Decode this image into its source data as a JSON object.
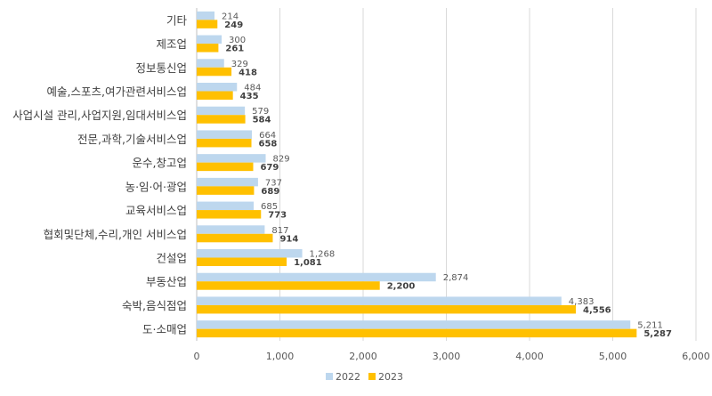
{
  "chart_data": {
    "type": "bar",
    "orientation": "horizontal",
    "categories": [
      "기타",
      "제조업",
      "정보통신업",
      "예술,스포츠,여가관련서비스업",
      "사업시설 관리,사업지원,임대서비스업",
      "전문,과학,기술서비스업",
      "운수,창고업",
      "농·임·어·광업",
      "교육서비스업",
      "협회및단체,수리,개인 서비스업",
      "건설업",
      "부동산업",
      "숙박,음식점업",
      "도·소매업"
    ],
    "series": [
      {
        "name": "2022",
        "color": "#BDD7EE",
        "values": [
          214,
          300,
          329,
          484,
          579,
          664,
          829,
          737,
          685,
          817,
          1268,
          2874,
          4383,
          5211
        ]
      },
      {
        "name": "2023",
        "color": "#FFC000",
        "values": [
          249,
          261,
          418,
          435,
          584,
          658,
          679,
          689,
          773,
          914,
          1081,
          2200,
          4556,
          5287
        ]
      }
    ],
    "xlim": [
      0,
      6000
    ],
    "xticks": [
      0,
      1000,
      2000,
      3000,
      4000,
      5000,
      6000
    ],
    "xtick_labels": [
      "0",
      "1,000",
      "2,000",
      "3,000",
      "4,000",
      "5,000",
      "6,000"
    ],
    "grid": "vertical",
    "legend": "bottom",
    "title": "",
    "xlabel": "",
    "ylabel": ""
  }
}
